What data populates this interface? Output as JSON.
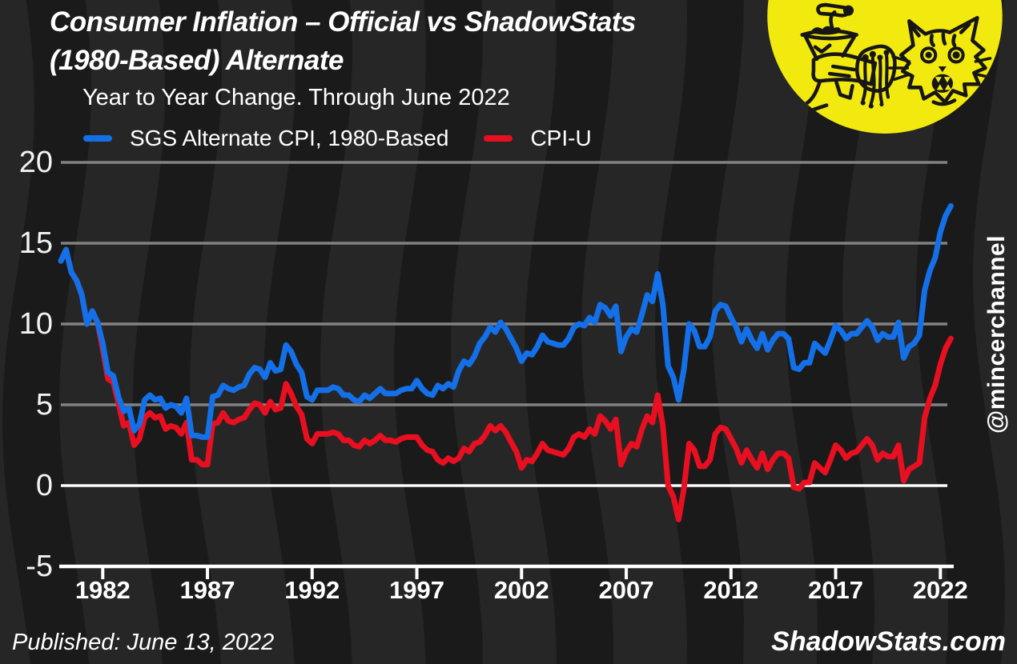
{
  "header": {
    "title_line1": "Consumer Inflation – Official vs ShadowStats",
    "title_line2": "(1980-Based) Alternate",
    "subtitle": "Year to Year Change. Through June 2022"
  },
  "legend": {
    "items": [
      {
        "label": "SGS Alternate CPI, 1980-Based",
        "color": "#1470e8"
      },
      {
        "label": "CPI-U",
        "color": "#e80f20"
      }
    ]
  },
  "watermark": "@mincerchannel",
  "footer": {
    "published": "Published: June 13, 2022",
    "site": "ShadowStats.com"
  },
  "logo": {
    "description": "mincer-channel logo: meat grinder and shocked cat in yellow circle",
    "bg_color": "#f2e90e",
    "ink_color": "#161616"
  },
  "colors": {
    "background": "#1a1a1a",
    "wave_band": "#262626",
    "gridline": "#828282",
    "zero_line": "#ffffff",
    "axis_line": "#ffffff",
    "text": "#ffffff",
    "sgs_blue": "#1470e8",
    "cpiu_red": "#e80f20"
  },
  "chart_data": {
    "type": "line",
    "title": "Consumer Inflation – Official vs ShadowStats (1980-Based) Alternate",
    "subtitle": "Year to Year Change. Through June 2022",
    "xlabel": "",
    "ylabel": "",
    "xlim": [
      1980,
      2022.6
    ],
    "ylim": [
      -5,
      20
    ],
    "x_ticks": [
      1982,
      1987,
      1992,
      1997,
      2002,
      2007,
      2012,
      2017,
      2022
    ],
    "y_ticks": [
      20,
      15,
      10,
      5,
      0,
      -5
    ],
    "grid": "horizontal gray lines; zero line and bottom axis in white",
    "legend_position": "top",
    "sampling": "quarterly year-over-year percent, x = x_start + i*x_step, last point = June 2022",
    "series": [
      {
        "name": "SGS Alternate CPI, 1980-Based",
        "color": "#1470e8",
        "x_start": 1980,
        "x_step": 0.25,
        "values": [
          13.9,
          14.6,
          13.2,
          12.7,
          11.8,
          10.0,
          10.8,
          10.1,
          8.8,
          7.0,
          6.8,
          5.5,
          4.6,
          4.8,
          3.4,
          3.8,
          5.3,
          5.6,
          5.3,
          5.4,
          4.8,
          5.0,
          4.9,
          4.5,
          5.4,
          3.1,
          3.1,
          3.0,
          3.0,
          5.5,
          5.6,
          6.2,
          6.0,
          5.9,
          6.1,
          6.2,
          6.9,
          7.3,
          7.2,
          6.7,
          7.6,
          7.1,
          7.2,
          8.7,
          8.3,
          7.5,
          7.0,
          5.5,
          5.3,
          5.9,
          5.9,
          5.9,
          6.1,
          6.0,
          5.6,
          5.6,
          5.3,
          5.2,
          5.6,
          5.4,
          5.7,
          6.0,
          5.7,
          5.7,
          5.7,
          5.9,
          6.0,
          6.0,
          6.5,
          6.0,
          5.7,
          5.6,
          6.2,
          6.0,
          6.3,
          6.1,
          7.1,
          7.7,
          7.5,
          8.0,
          8.8,
          9.2,
          9.8,
          9.5,
          10.1,
          9.7,
          9.1,
          8.5,
          7.7,
          8.2,
          8.1,
          8.6,
          9.3,
          8.9,
          8.8,
          8.7,
          8.7,
          9.1,
          9.8,
          10.0,
          9.9,
          10.4,
          10.1,
          11.2,
          11.0,
          10.5,
          11.1,
          8.3,
          9.2,
          9.7,
          9.5,
          10.6,
          11.8,
          11.4,
          13.1,
          11.2,
          7.4,
          6.7,
          5.3,
          7.2,
          10.0,
          9.6,
          8.6,
          8.6,
          9.2,
          10.8,
          11.2,
          11.1,
          10.4,
          9.8,
          8.9,
          9.7,
          9.0,
          8.5,
          9.4,
          8.4,
          9.0,
          9.4,
          9.4,
          9.1,
          7.3,
          7.2,
          7.6,
          7.6,
          8.8,
          8.5,
          8.2,
          9.0,
          9.9,
          9.6,
          9.1,
          9.4,
          9.4,
          9.8,
          10.2,
          9.8,
          9.0,
          9.4,
          9.2,
          9.2,
          10.1,
          7.9,
          8.6,
          8.8,
          9.3,
          12.1,
          13.3,
          14.1,
          15.7,
          16.7,
          17.3
        ]
      },
      {
        "name": "CPI-U",
        "color": "#e80f20",
        "x_start": 1980,
        "x_step": 0.25,
        "values": [
          13.9,
          14.6,
          13.2,
          12.7,
          11.8,
          10.0,
          10.8,
          10.1,
          8.4,
          6.6,
          6.4,
          5.1,
          3.7,
          3.9,
          2.5,
          2.9,
          4.2,
          4.5,
          4.2,
          4.3,
          3.5,
          3.7,
          3.6,
          3.2,
          3.9,
          1.6,
          1.6,
          1.3,
          1.3,
          3.8,
          3.9,
          4.5,
          4.0,
          3.9,
          4.1,
          4.2,
          4.7,
          5.1,
          5.0,
          4.5,
          5.2,
          4.7,
          4.8,
          6.3,
          5.7,
          4.9,
          4.4,
          2.9,
          2.6,
          3.2,
          3.2,
          3.2,
          3.3,
          3.2,
          2.8,
          2.8,
          2.5,
          2.4,
          2.8,
          2.6,
          2.8,
          3.1,
          2.8,
          2.8,
          2.7,
          2.9,
          3.0,
          3.0,
          3.0,
          2.5,
          2.2,
          2.1,
          1.6,
          1.4,
          1.7,
          1.5,
          1.7,
          2.3,
          2.1,
          2.6,
          2.7,
          3.1,
          3.7,
          3.4,
          3.7,
          3.3,
          2.7,
          2.1,
          1.1,
          1.6,
          1.5,
          2.0,
          2.6,
          2.2,
          2.1,
          2.0,
          1.9,
          2.3,
          3.0,
          3.2,
          3.0,
          3.5,
          3.2,
          4.3,
          4.0,
          3.5,
          4.1,
          1.3,
          2.1,
          2.6,
          2.4,
          3.5,
          4.3,
          3.9,
          5.6,
          3.7,
          0.0,
          -0.7,
          -2.1,
          -0.2,
          2.6,
          2.2,
          1.2,
          1.2,
          1.6,
          3.2,
          3.6,
          3.5,
          2.9,
          2.3,
          1.4,
          2.2,
          1.6,
          1.1,
          2.0,
          1.0,
          1.6,
          2.0,
          2.0,
          1.7,
          -0.1,
          -0.2,
          0.2,
          0.2,
          1.4,
          1.1,
          0.8,
          1.6,
          2.5,
          2.2,
          1.7,
          2.0,
          2.1,
          2.5,
          2.9,
          2.5,
          1.6,
          2.0,
          1.8,
          1.8,
          2.5,
          0.3,
          1.0,
          1.2,
          1.4,
          4.2,
          5.4,
          6.2,
          7.5,
          8.5,
          9.1
        ]
      }
    ]
  }
}
